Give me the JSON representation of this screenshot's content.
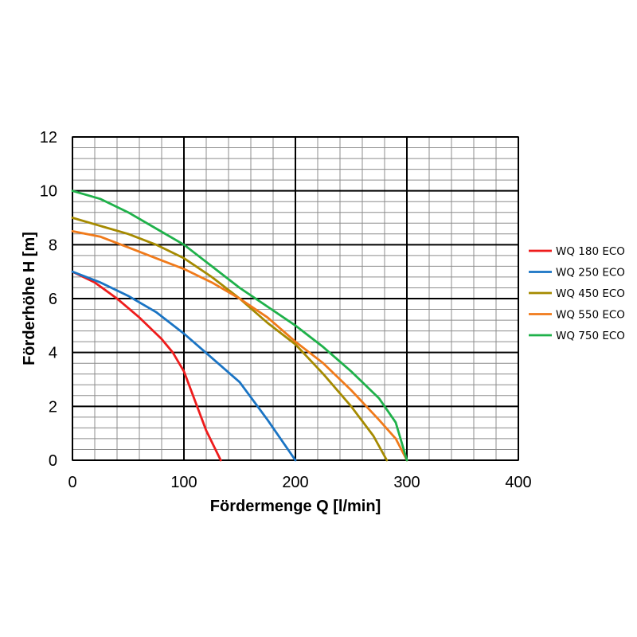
{
  "chart_data": {
    "type": "line",
    "xlabel": "Fördermenge Q [l/min]",
    "ylabel": "Förderhöhe H [m]",
    "xlim": [
      0,
      400
    ],
    "ylim": [
      0,
      12
    ],
    "x_ticks": [
      "0",
      "100",
      "200",
      "300",
      "400"
    ],
    "y_ticks": [
      "0",
      "2",
      "4",
      "6",
      "8",
      "10",
      "12"
    ],
    "major_grid": {
      "x_step": 100,
      "y_step": 2
    },
    "minor_grid": {
      "x_step": 20,
      "y_step": 0.4
    },
    "grid": true,
    "legend_position": "right",
    "series": [
      {
        "name": "WQ 180 ECO",
        "color": "#ee1c1c",
        "points": [
          [
            0,
            7.0
          ],
          [
            20,
            6.6
          ],
          [
            40,
            6.0
          ],
          [
            60,
            5.3
          ],
          [
            80,
            4.5
          ],
          [
            90,
            4.0
          ],
          [
            100,
            3.3
          ],
          [
            110,
            2.2
          ],
          [
            120,
            1.1
          ],
          [
            133,
            0
          ]
        ]
      },
      {
        "name": "WQ 250 ECO",
        "color": "#1a74c4",
        "points": [
          [
            0,
            7.0
          ],
          [
            25,
            6.6
          ],
          [
            50,
            6.1
          ],
          [
            75,
            5.5
          ],
          [
            100,
            4.7
          ],
          [
            125,
            3.8
          ],
          [
            150,
            2.9
          ],
          [
            175,
            1.5
          ],
          [
            200,
            0
          ]
        ]
      },
      {
        "name": "WQ 450 ECO",
        "color": "#a58a00",
        "points": [
          [
            0,
            9.0
          ],
          [
            25,
            8.7
          ],
          [
            50,
            8.4
          ],
          [
            75,
            8.0
          ],
          [
            100,
            7.5
          ],
          [
            125,
            6.8
          ],
          [
            150,
            6.0
          ],
          [
            175,
            5.1
          ],
          [
            200,
            4.3
          ],
          [
            225,
            3.2
          ],
          [
            250,
            2.0
          ],
          [
            270,
            0.9
          ],
          [
            282,
            0
          ]
        ]
      },
      {
        "name": "WQ 550 ECO",
        "color": "#f07a1a",
        "points": [
          [
            0,
            8.5
          ],
          [
            25,
            8.3
          ],
          [
            50,
            7.9
          ],
          [
            75,
            7.5
          ],
          [
            100,
            7.1
          ],
          [
            125,
            6.6
          ],
          [
            150,
            6.0
          ],
          [
            175,
            5.3
          ],
          [
            200,
            4.4
          ],
          [
            225,
            3.6
          ],
          [
            250,
            2.6
          ],
          [
            275,
            1.5
          ],
          [
            290,
            0.8
          ],
          [
            300,
            0
          ]
        ]
      },
      {
        "name": "WQ 750 ECO",
        "color": "#1fb14a",
        "points": [
          [
            0,
            10.0
          ],
          [
            25,
            9.7
          ],
          [
            50,
            9.2
          ],
          [
            75,
            8.6
          ],
          [
            100,
            8.0
          ],
          [
            125,
            7.2
          ],
          [
            150,
            6.4
          ],
          [
            175,
            5.7
          ],
          [
            200,
            5.0
          ],
          [
            225,
            4.2
          ],
          [
            250,
            3.3
          ],
          [
            275,
            2.3
          ],
          [
            290,
            1.4
          ],
          [
            300,
            0
          ]
        ]
      }
    ]
  }
}
